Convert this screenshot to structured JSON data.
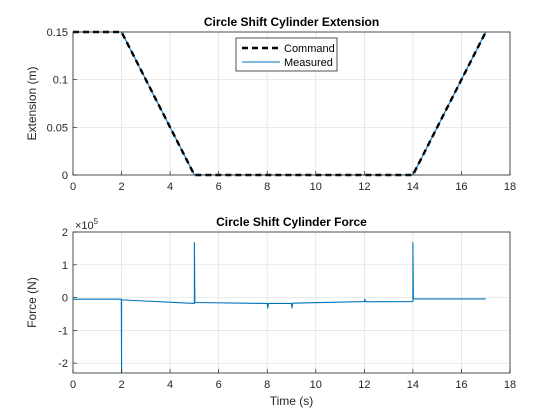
{
  "colors": {
    "command": "#000000",
    "measured": "#0072BD",
    "grid": "#dfdfdf",
    "axis": "#262626"
  },
  "chart_data": [
    {
      "type": "line",
      "title": "Circle Shift Cylinder Extension",
      "xlabel": "",
      "ylabel": "Extension (m)",
      "xlim": [
        0,
        18
      ],
      "ylim": [
        0,
        0.15
      ],
      "xticks": [
        0,
        2,
        4,
        6,
        8,
        10,
        12,
        14,
        16,
        18
      ],
      "yticks": [
        0,
        0.05,
        0.1,
        0.15
      ],
      "ytick_labels": [
        "0",
        "0.05",
        "0.1",
        "0.15"
      ],
      "grid": true,
      "legend": "top-center",
      "series": [
        {
          "name": "Command",
          "style": "dashed",
          "color": "#000000",
          "x": [
            0,
            2,
            5,
            14,
            17
          ],
          "y": [
            0.15,
            0.15,
            0,
            0,
            0.15
          ]
        },
        {
          "name": "Measured",
          "style": "solid",
          "color": "#0072BD",
          "x": [
            0,
            2,
            5,
            14,
            17
          ],
          "y": [
            0.15,
            0.15,
            0,
            0,
            0.15
          ]
        }
      ]
    },
    {
      "type": "line",
      "title": "Circle Shift Cylinder Force",
      "xlabel": "Time (s)",
      "ylabel": "Force (N)",
      "yexponent": "×10^5",
      "xlim": [
        0,
        18
      ],
      "ylim": [
        -2.3,
        2
      ],
      "xticks": [
        0,
        2,
        4,
        6,
        8,
        10,
        12,
        14,
        16,
        18
      ],
      "yticks": [
        -2,
        -1,
        0,
        1,
        2
      ],
      "ytick_labels": [
        "-2",
        "-1",
        "0",
        "1",
        "2"
      ],
      "grid": true,
      "series": [
        {
          "name": "",
          "color": "#0072BD",
          "x": [
            0,
            1.99,
            2.0,
            2.0,
            2.02,
            5.0,
            5.0,
            5.02,
            8.0,
            8.02,
            8.05,
            9.0,
            9.02,
            9.05,
            12.0,
            12.02,
            12.05,
            14.0,
            14.0,
            14.02,
            17.0
          ],
          "y": [
            -0.05,
            -0.05,
            -2.3,
            -0.07,
            -0.07,
            -0.18,
            1.68,
            -0.15,
            -0.18,
            -0.32,
            -0.18,
            -0.18,
            -0.32,
            -0.17,
            -0.12,
            -0.05,
            -0.13,
            -0.12,
            1.68,
            -0.04,
            -0.04
          ]
        }
      ]
    }
  ]
}
